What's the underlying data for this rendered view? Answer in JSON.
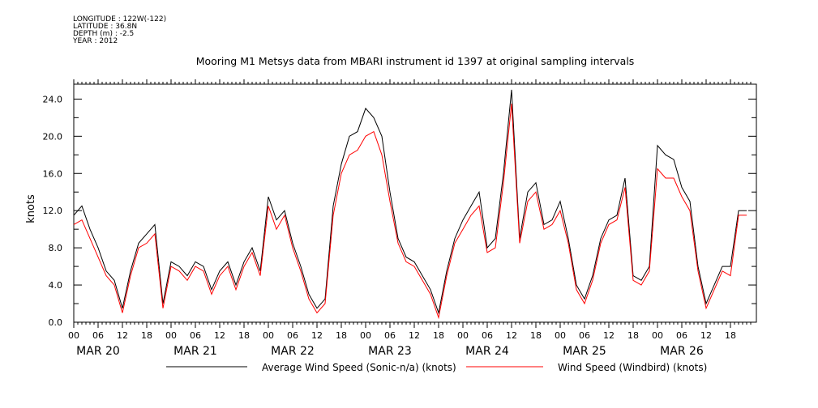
{
  "header": {
    "meta_lines": [
      "LONGITUDE : 122W(-122)",
      "LATITUDE : 36.8N",
      "DEPTH (m) : -2.5",
      "YEAR : 2012"
    ]
  },
  "chart_data": {
    "type": "line",
    "title": "Mooring M1 Metsys data from MBARI instrument id 1397 at original sampling intervals",
    "ylabel": "knots",
    "xlabel": "",
    "ylim": [
      0,
      25.6
    ],
    "yticks": [
      0.0,
      4.0,
      8.0,
      12.0,
      16.0,
      20.0,
      24.0
    ],
    "ytick_labels": [
      "0.0",
      "4.0",
      "8.0",
      "12.0",
      "16.0",
      "20.0",
      "24.0"
    ],
    "xlim": [
      0,
      167
    ],
    "x_unit": "hours since MAR 20 00:00 (2012)",
    "hour_tick_labels": [
      "00",
      "06",
      "12",
      "18"
    ],
    "day_labels": [
      "MAR 20",
      "MAR 21",
      "MAR 22",
      "MAR 23",
      "MAR 24",
      "MAR 25",
      "MAR 26"
    ],
    "grid": false,
    "legend_position": "bottom",
    "series": [
      {
        "name": "Average Wind Speed (Sonic-n/a) (knots)",
        "color": "#000000",
        "x": [
          0,
          2,
          4,
          6,
          8,
          10,
          12,
          14,
          16,
          18,
          20,
          22,
          24,
          26,
          28,
          30,
          32,
          34,
          36,
          38,
          40,
          42,
          44,
          46,
          48,
          50,
          52,
          54,
          56,
          58,
          60,
          62,
          64,
          66,
          68,
          70,
          72,
          74,
          76,
          78,
          80,
          82,
          84,
          86,
          88,
          90,
          92,
          94,
          96,
          98,
          100,
          102,
          104,
          106,
          108,
          110,
          112,
          114,
          116,
          118,
          120,
          122,
          124,
          126,
          128,
          130,
          132,
          134,
          136,
          138,
          140,
          142,
          144,
          146,
          148,
          150,
          152,
          154,
          156,
          158,
          160,
          162,
          164,
          166
        ],
        "values": [
          11.5,
          12.5,
          10,
          8,
          5.5,
          4.5,
          1.5,
          5.5,
          8.5,
          9.5,
          10.5,
          2,
          6.5,
          6,
          5,
          6.5,
          6,
          3.5,
          5.5,
          6.5,
          4,
          6.5,
          8,
          5.5,
          13.5,
          11,
          12,
          8.5,
          6,
          3,
          1.5,
          2.5,
          12.5,
          17,
          20,
          20.5,
          23,
          22,
          20,
          14,
          9,
          7,
          6.5,
          5,
          3.5,
          1,
          5.5,
          9,
          11,
          12.5,
          14,
          8,
          9,
          16,
          25,
          9,
          14,
          15,
          10.5,
          11,
          13,
          9,
          4,
          2.5,
          5,
          9,
          11,
          11.5,
          15.5,
          5,
          4.5,
          6,
          19,
          18,
          17.5,
          14.5,
          13,
          6,
          2,
          4,
          6,
          6,
          12,
          12
        ]
      },
      {
        "name": "Wind Speed (Windbird) (knots)",
        "color": "#ff0000",
        "x": [
          0,
          2,
          4,
          6,
          8,
          10,
          12,
          14,
          16,
          18,
          20,
          22,
          24,
          26,
          28,
          30,
          32,
          34,
          36,
          38,
          40,
          42,
          44,
          46,
          48,
          50,
          52,
          54,
          56,
          58,
          60,
          62,
          64,
          66,
          68,
          70,
          72,
          74,
          76,
          78,
          80,
          82,
          84,
          86,
          88,
          90,
          92,
          94,
          96,
          98,
          100,
          102,
          104,
          106,
          108,
          110,
          112,
          114,
          116,
          118,
          120,
          122,
          124,
          126,
          128,
          130,
          132,
          134,
          136,
          138,
          140,
          142,
          144,
          146,
          148,
          150,
          152,
          154,
          156,
          158,
          160,
          162,
          164,
          166
        ],
        "values": [
          10.5,
          11,
          9,
          7,
          5,
          4,
          1,
          5,
          8,
          8.5,
          9.5,
          1.5,
          6,
          5.5,
          4.5,
          6,
          5.5,
          3,
          5,
          6,
          3.5,
          6,
          7.5,
          5,
          12.5,
          10,
          11.5,
          8,
          5.5,
          2.5,
          1,
          2,
          11.5,
          16,
          18,
          18.5,
          20,
          20.5,
          18,
          13,
          8.5,
          6.5,
          6,
          4.5,
          3,
          0.5,
          5,
          8.5,
          10,
          11.5,
          12.5,
          7.5,
          8,
          15,
          23.5,
          8.5,
          13,
          14,
          10,
          10.5,
          12,
          8.5,
          3.5,
          2,
          4.5,
          8.5,
          10.5,
          11,
          14.5,
          4.5,
          4,
          5.5,
          16.5,
          15.5,
          15.5,
          13.5,
          12,
          5.5,
          1.5,
          3.5,
          5.5,
          5,
          11.5,
          11.5
        ]
      }
    ]
  }
}
